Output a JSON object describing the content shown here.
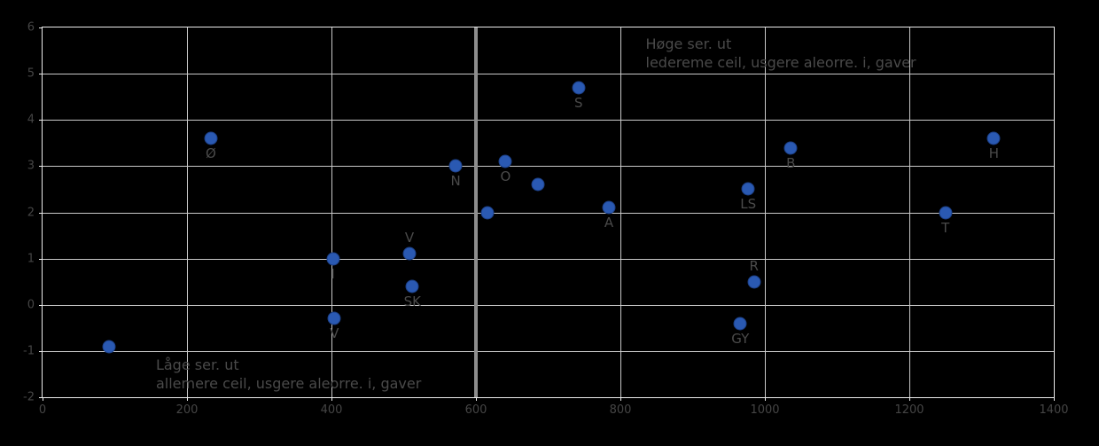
{
  "chart_data": {
    "type": "scatter",
    "title": "",
    "xlabel": "",
    "ylabel": "",
    "xlim": [
      0,
      1400
    ],
    "ylim": [
      -2,
      6
    ],
    "x_ticks": [
      0,
      200,
      400,
      600,
      800,
      1000,
      1200,
      1400
    ],
    "y_ticks": [
      6,
      5,
      4,
      3,
      2,
      1,
      0,
      -1,
      -2
    ],
    "grid": true,
    "legend": false,
    "reference_line_x": 600,
    "points": [
      {
        "x": 92,
        "y": -0.9,
        "label": "",
        "label_pos": ""
      },
      {
        "x": 233,
        "y": 3.6,
        "label": "Ø",
        "label_pos": "below"
      },
      {
        "x": 402,
        "y": 1.0,
        "label": "I",
        "label_pos": "below"
      },
      {
        "x": 404,
        "y": -0.3,
        "label": "V",
        "label_pos": "below"
      },
      {
        "x": 508,
        "y": 1.1,
        "label": "V",
        "label_pos": "above"
      },
      {
        "x": 512,
        "y": 0.4,
        "label": "SK",
        "label_pos": "below"
      },
      {
        "x": 572,
        "y": 3.0,
        "label": "N",
        "label_pos": "below"
      },
      {
        "x": 616,
        "y": 2.0,
        "label": "",
        "label_pos": ""
      },
      {
        "x": 641,
        "y": 3.1,
        "label": "O",
        "label_pos": "below"
      },
      {
        "x": 686,
        "y": 2.6,
        "label": "",
        "label_pos": ""
      },
      {
        "x": 742,
        "y": 4.7,
        "label": "S",
        "label_pos": "below"
      },
      {
        "x": 784,
        "y": 2.1,
        "label": "A",
        "label_pos": "below"
      },
      {
        "x": 977,
        "y": 2.5,
        "label": "LS",
        "label_pos": "below"
      },
      {
        "x": 985,
        "y": 0.5,
        "label": "R",
        "label_pos": "above"
      },
      {
        "x": 966,
        "y": -0.4,
        "label": "GY",
        "label_pos": "below"
      },
      {
        "x": 1036,
        "y": 3.4,
        "label": "B",
        "label_pos": "below"
      },
      {
        "x": 1250,
        "y": 2.0,
        "label": "T",
        "label_pos": "below"
      },
      {
        "x": 1317,
        "y": 3.6,
        "label": "H",
        "label_pos": "below"
      }
    ],
    "annotations": [
      {
        "x": 835,
        "y": 5.85,
        "lines": [
          "Høge ser. ut",
          "ledereme ceil, usgere aleorre. i, gaver"
        ]
      },
      {
        "x": 157,
        "y": -1.1,
        "lines": [
          "Låge ser. ut",
          "allemere ceil, usgere aleorre. i, gaver"
        ]
      }
    ]
  },
  "colors": {
    "background": "#000000",
    "marker": "#2a59b2",
    "marker_edge": "#1c3f85",
    "grid": "#c9c9c9",
    "border": "#ececec",
    "reference_line": "#8d8d8d",
    "text": "#4a4a4a"
  }
}
